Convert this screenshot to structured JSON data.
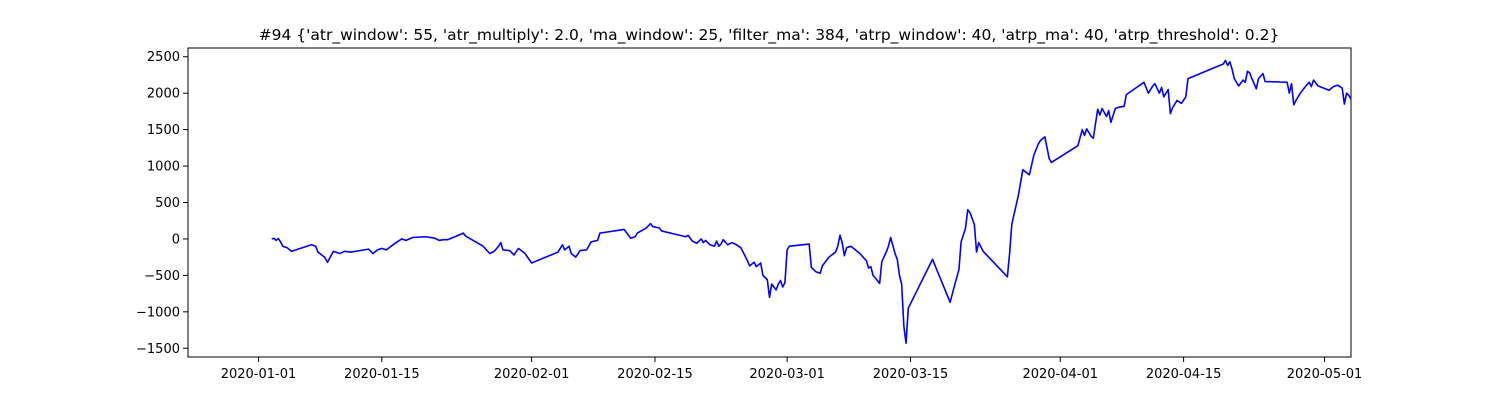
{
  "chart_data": {
    "type": "line",
    "title": "#94 {'atr_window': 55, 'atr_multiply': 2.0, 'ma_window': 25, 'filter_ma': 384, 'atrp_window': 40, 'atrp_ma': 40, 'atrp_threshold': 0.2}",
    "xlabel": "",
    "ylabel": "",
    "x_range": [
      "2019-12-24",
      "2020-05-04"
    ],
    "ylim": [
      -1620,
      2620
    ],
    "grid": false,
    "x_ticks": [
      "2020-01-01",
      "2020-01-15",
      "2020-02-01",
      "2020-02-15",
      "2020-03-01",
      "2020-03-15",
      "2020-04-01",
      "2020-04-15",
      "2020-05-01"
    ],
    "y_ticks": [
      -1500,
      -1000,
      -500,
      0,
      500,
      1000,
      1500,
      2000,
      2500
    ],
    "series": [
      {
        "name": "",
        "color": "#0000ff",
        "points": [
          [
            "2020-01-02 12:00",
            0
          ],
          [
            "2020-01-02 18:00",
            10
          ],
          [
            "2020-01-03 00:00",
            -20
          ],
          [
            "2020-01-03 06:00",
            5
          ],
          [
            "2020-01-03 12:00",
            -40
          ],
          [
            "2020-01-03 18:00",
            -100
          ],
          [
            "2020-01-04 06:00",
            -120
          ],
          [
            "2020-01-04 18:00",
            -170
          ],
          [
            "2020-01-05 12:00",
            -140
          ],
          [
            "2020-01-06 12:00",
            -100
          ],
          [
            "2020-01-07 00:00",
            -80
          ],
          [
            "2020-01-07 12:00",
            -100
          ],
          [
            "2020-01-07 18:00",
            -180
          ],
          [
            "2020-01-08 12:00",
            -250
          ],
          [
            "2020-01-08 20:00",
            -320
          ],
          [
            "2020-01-09 12:00",
            -170
          ],
          [
            "2020-01-10 06:00",
            -200
          ],
          [
            "2020-01-10 18:00",
            -170
          ],
          [
            "2020-01-11 12:00",
            -180
          ],
          [
            "2020-01-13 12:00",
            -140
          ],
          [
            "2020-01-14 00:00",
            -200
          ],
          [
            "2020-01-14 12:00",
            -150
          ],
          [
            "2020-01-15 00:00",
            -130
          ],
          [
            "2020-01-15 12:00",
            -150
          ],
          [
            "2020-01-16 12:00",
            -60
          ],
          [
            "2020-01-17 06:00",
            0
          ],
          [
            "2020-01-17 18:00",
            -20
          ],
          [
            "2020-01-18 12:00",
            20
          ],
          [
            "2020-01-20 00:00",
            30
          ],
          [
            "2020-01-21 00:00",
            10
          ],
          [
            "2020-01-21 12:00",
            -20
          ],
          [
            "2020-01-22 00:00",
            -10
          ],
          [
            "2020-01-22 12:00",
            -10
          ],
          [
            "2020-01-23 12:00",
            40
          ],
          [
            "2020-01-24 06:00",
            80
          ],
          [
            "2020-01-24 12:00",
            40
          ],
          [
            "2020-01-26 12:00",
            -100
          ],
          [
            "2020-01-27 06:00",
            -200
          ],
          [
            "2020-01-27 18:00",
            -170
          ],
          [
            "2020-01-28 06:00",
            -100
          ],
          [
            "2020-01-28 12:00",
            -50
          ],
          [
            "2020-01-28 18:00",
            -150
          ],
          [
            "2020-01-29 12:00",
            -160
          ],
          [
            "2020-01-30 00:00",
            -220
          ],
          [
            "2020-01-30 12:00",
            -130
          ],
          [
            "2020-01-31 06:00",
            -200
          ],
          [
            "2020-02-01 00:00",
            -330
          ],
          [
            "2020-02-04 00:00",
            -180
          ],
          [
            "2020-02-04 12:00",
            -80
          ],
          [
            "2020-02-04 18:00",
            -150
          ],
          [
            "2020-02-05 06:00",
            -100
          ],
          [
            "2020-02-05 12:00",
            -200
          ],
          [
            "2020-02-06 00:00",
            -250
          ],
          [
            "2020-02-06 12:00",
            -160
          ],
          [
            "2020-02-07 06:00",
            -150
          ],
          [
            "2020-02-07 18:00",
            -40
          ],
          [
            "2020-02-08 12:00",
            -20
          ],
          [
            "2020-02-08 18:00",
            80
          ],
          [
            "2020-02-11 12:00",
            130
          ],
          [
            "2020-02-12 06:00",
            10
          ],
          [
            "2020-02-12 18:00",
            30
          ],
          [
            "2020-02-13 00:00",
            80
          ],
          [
            "2020-02-14 00:00",
            150
          ],
          [
            "2020-02-14 12:00",
            210
          ],
          [
            "2020-02-14 18:00",
            170
          ],
          [
            "2020-02-15 12:00",
            150
          ],
          [
            "2020-02-15 18:00",
            110
          ],
          [
            "2020-02-18 12:00",
            30
          ],
          [
            "2020-02-18 18:00",
            50
          ],
          [
            "2020-02-19 06:00",
            -30
          ],
          [
            "2020-02-19 18:00",
            -60
          ],
          [
            "2020-02-20 06:00",
            0
          ],
          [
            "2020-02-20 12:00",
            -50
          ],
          [
            "2020-02-20 18:00",
            -20
          ],
          [
            "2020-02-21 06:00",
            -80
          ],
          [
            "2020-02-21 18:00",
            -100
          ],
          [
            "2020-02-22 00:00",
            -30
          ],
          [
            "2020-02-22 06:00",
            -100
          ],
          [
            "2020-02-22 12:00",
            -70
          ],
          [
            "2020-02-22 18:00",
            -10
          ],
          [
            "2020-02-23 06:00",
            -80
          ],
          [
            "2020-02-23 18:00",
            -50
          ],
          [
            "2020-02-24 06:00",
            -80
          ],
          [
            "2020-02-24 18:00",
            -120
          ],
          [
            "2020-02-25 12:00",
            -300
          ],
          [
            "2020-02-25 18:00",
            -370
          ],
          [
            "2020-02-26 06:00",
            -320
          ],
          [
            "2020-02-26 12:00",
            -380
          ],
          [
            "2020-02-27 00:00",
            -330
          ],
          [
            "2020-02-27 06:00",
            -500
          ],
          [
            "2020-02-27 18:00",
            -560
          ],
          [
            "2020-02-28 00:00",
            -800
          ],
          [
            "2020-02-28 06:00",
            -620
          ],
          [
            "2020-02-28 18:00",
            -700
          ],
          [
            "2020-02-29 00:00",
            -620
          ],
          [
            "2020-02-29 06:00",
            -570
          ],
          [
            "2020-02-29 12:00",
            -660
          ],
          [
            "2020-02-29 18:00",
            -600
          ],
          [
            "2020-03-01 00:00",
            -150
          ],
          [
            "2020-03-01 06:00",
            -100
          ],
          [
            "2020-03-03 12:00",
            -70
          ],
          [
            "2020-03-03 18:00",
            -390
          ],
          [
            "2020-03-04 06:00",
            -450
          ],
          [
            "2020-03-04 18:00",
            -470
          ],
          [
            "2020-03-05 00:00",
            -370
          ],
          [
            "2020-03-05 18:00",
            -250
          ],
          [
            "2020-03-06 12:00",
            -180
          ],
          [
            "2020-03-06 18:00",
            -100
          ],
          [
            "2020-03-07 00:00",
            50
          ],
          [
            "2020-03-07 06:00",
            -50
          ],
          [
            "2020-03-07 12:00",
            -230
          ],
          [
            "2020-03-07 18:00",
            -120
          ],
          [
            "2020-03-08 06:00",
            -100
          ],
          [
            "2020-03-09 06:00",
            -200
          ],
          [
            "2020-03-10 00:00",
            -300
          ],
          [
            "2020-03-10 06:00",
            -400
          ],
          [
            "2020-03-10 12:00",
            -380
          ],
          [
            "2020-03-10 18:00",
            -500
          ],
          [
            "2020-03-11 06:00",
            -570
          ],
          [
            "2020-03-11 12:00",
            -610
          ],
          [
            "2020-03-11 18:00",
            -310
          ],
          [
            "2020-03-12 06:00",
            -180
          ],
          [
            "2020-03-12 12:00",
            -100
          ],
          [
            "2020-03-12 18:00",
            20
          ],
          [
            "2020-03-13 06:00",
            -200
          ],
          [
            "2020-03-13 12:00",
            -280
          ],
          [
            "2020-03-13 18:00",
            -500
          ],
          [
            "2020-03-14 00:00",
            -620
          ],
          [
            "2020-03-14 06:00",
            -1200
          ],
          [
            "2020-03-14 12:00",
            -1430
          ],
          [
            "2020-03-14 18:00",
            -950
          ],
          [
            "2020-03-17 12:00",
            -280
          ],
          [
            "2020-03-19 12:00",
            -870
          ],
          [
            "2020-03-20 00:00",
            -640
          ],
          [
            "2020-03-20 12:00",
            -420
          ],
          [
            "2020-03-20 18:00",
            -40
          ],
          [
            "2020-03-21 06:00",
            150
          ],
          [
            "2020-03-21 12:00",
            400
          ],
          [
            "2020-03-21 18:00",
            360
          ],
          [
            "2020-03-22 06:00",
            200
          ],
          [
            "2020-03-22 12:00",
            -180
          ],
          [
            "2020-03-22 18:00",
            -50
          ],
          [
            "2020-03-23 06:00",
            -170
          ],
          [
            "2020-03-26 00:00",
            -520
          ],
          [
            "2020-03-26 06:00",
            -200
          ],
          [
            "2020-03-26 12:00",
            200
          ],
          [
            "2020-03-27 06:00",
            600
          ],
          [
            "2020-03-27 18:00",
            950
          ],
          [
            "2020-03-28 12:00",
            880
          ],
          [
            "2020-03-29 00:00",
            1150
          ],
          [
            "2020-03-29 12:00",
            1300
          ],
          [
            "2020-03-29 18:00",
            1350
          ],
          [
            "2020-03-30 06:00",
            1400
          ],
          [
            "2020-03-30 18:00",
            1100
          ],
          [
            "2020-03-31 00:00",
            1050
          ],
          [
            "2020-04-03 00:00",
            1280
          ],
          [
            "2020-04-03 12:00",
            1500
          ],
          [
            "2020-04-03 18:00",
            1420
          ],
          [
            "2020-04-04 00:00",
            1510
          ],
          [
            "2020-04-04 12:00",
            1410
          ],
          [
            "2020-04-04 18:00",
            1380
          ],
          [
            "2020-04-05 06:00",
            1780
          ],
          [
            "2020-04-05 12:00",
            1700
          ],
          [
            "2020-04-05 18:00",
            1790
          ],
          [
            "2020-04-06 06:00",
            1680
          ],
          [
            "2020-04-06 12:00",
            1760
          ],
          [
            "2020-04-06 18:00",
            1600
          ],
          [
            "2020-04-07 06:00",
            1790
          ],
          [
            "2020-04-07 12:00",
            1800
          ],
          [
            "2020-04-07 18:00",
            1810
          ],
          [
            "2020-04-08 06:00",
            1820
          ],
          [
            "2020-04-08 12:00",
            1980
          ],
          [
            "2020-04-10 12:00",
            2150
          ],
          [
            "2020-04-11 00:00",
            2000
          ],
          [
            "2020-04-11 12:00",
            2100
          ],
          [
            "2020-04-11 18:00",
            2130
          ],
          [
            "2020-04-12 06:00",
            2000
          ],
          [
            "2020-04-12 12:00",
            2080
          ],
          [
            "2020-04-12 18:00",
            1950
          ],
          [
            "2020-04-13 06:00",
            2050
          ],
          [
            "2020-04-13 12:00",
            1720
          ],
          [
            "2020-04-13 18:00",
            1800
          ],
          [
            "2020-04-14 06:00",
            1900
          ],
          [
            "2020-04-14 18:00",
            1860
          ],
          [
            "2020-04-15 06:00",
            1950
          ],
          [
            "2020-04-15 12:00",
            2200
          ],
          [
            "2020-04-19 12:00",
            2400
          ],
          [
            "2020-04-19 18:00",
            2450
          ],
          [
            "2020-04-20 00:00",
            2380
          ],
          [
            "2020-04-20 06:00",
            2430
          ],
          [
            "2020-04-20 12:00",
            2330
          ],
          [
            "2020-04-20 18:00",
            2200
          ],
          [
            "2020-04-21 06:00",
            2100
          ],
          [
            "2020-04-21 18:00",
            2180
          ],
          [
            "2020-04-22 00:00",
            2150
          ],
          [
            "2020-04-22 06:00",
            2300
          ],
          [
            "2020-04-22 12:00",
            2280
          ],
          [
            "2020-04-22 18:00",
            2200
          ],
          [
            "2020-04-23 06:00",
            2060
          ],
          [
            "2020-04-23 12:00",
            2200
          ],
          [
            "2020-04-24 00:00",
            2270
          ],
          [
            "2020-04-24 06:00",
            2160
          ],
          [
            "2020-04-26 18:00",
            2150
          ],
          [
            "2020-04-27 00:00",
            2000
          ],
          [
            "2020-04-27 06:00",
            2130
          ],
          [
            "2020-04-27 12:00",
            1840
          ],
          [
            "2020-04-27 18:00",
            1900
          ],
          [
            "2020-04-28 06:00",
            2000
          ],
          [
            "2020-04-28 18:00",
            2080
          ],
          [
            "2020-04-29 06:00",
            2150
          ],
          [
            "2020-04-29 12:00",
            2090
          ],
          [
            "2020-04-29 18:00",
            2180
          ],
          [
            "2020-04-30 06:00",
            2100
          ],
          [
            "2020-05-01 12:00",
            2040
          ],
          [
            "2020-05-02 00:00",
            2090
          ],
          [
            "2020-05-02 12:00",
            2110
          ],
          [
            "2020-05-03 00:00",
            2070
          ],
          [
            "2020-05-03 06:00",
            1850
          ],
          [
            "2020-05-03 12:00",
            2000
          ],
          [
            "2020-05-03 18:00",
            1970
          ],
          [
            "2020-05-04 00:00",
            1920
          ]
        ]
      }
    ]
  }
}
